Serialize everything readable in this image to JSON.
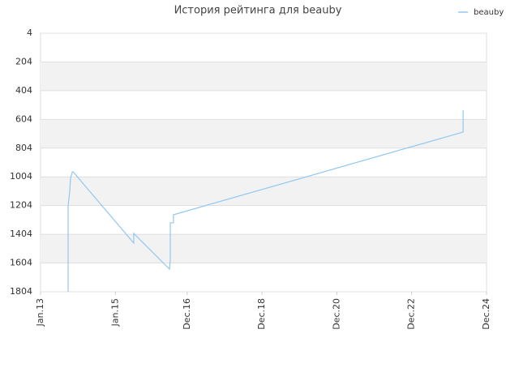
{
  "chart_data": {
    "type": "line",
    "title": "История рейтинга для beauby",
    "x": [
      2013.737,
      2013.737,
      2013.78,
      2013.8,
      2013.85,
      2013.87,
      2015.49,
      2015.49,
      2016.445,
      2016.467,
      2016.467,
      2016.55,
      2016.55,
      2024.29,
      2024.29
    ],
    "series": [
      {
        "name": "beauby",
        "color": "#90c8f0",
        "values": [
          1804,
          1206,
          1104,
          1014,
          969,
          969,
          1465,
          1398,
          1646,
          1578,
          1324,
          1324,
          1268,
          692,
          540
        ]
      }
    ],
    "xlim": [
      2013,
      2024.917
    ],
    "xticks": [
      {
        "value": 2013,
        "label": "Jan.13"
      },
      {
        "value": 2015,
        "label": "Jan.15"
      },
      {
        "value": 2016.917,
        "label": "Dec.16"
      },
      {
        "value": 2018.917,
        "label": "Dec.18"
      },
      {
        "value": 2020.917,
        "label": "Dec.20"
      },
      {
        "value": 2022.917,
        "label": "Dec.22"
      },
      {
        "value": 2024.917,
        "label": "Dec.24"
      }
    ],
    "ylim": [
      4,
      1804
    ],
    "yticks": [
      4,
      204,
      404,
      604,
      804,
      1004,
      1204,
      1404,
      1604,
      1804
    ],
    "inverted_y": true,
    "grid": true,
    "legend": "top-right"
  }
}
